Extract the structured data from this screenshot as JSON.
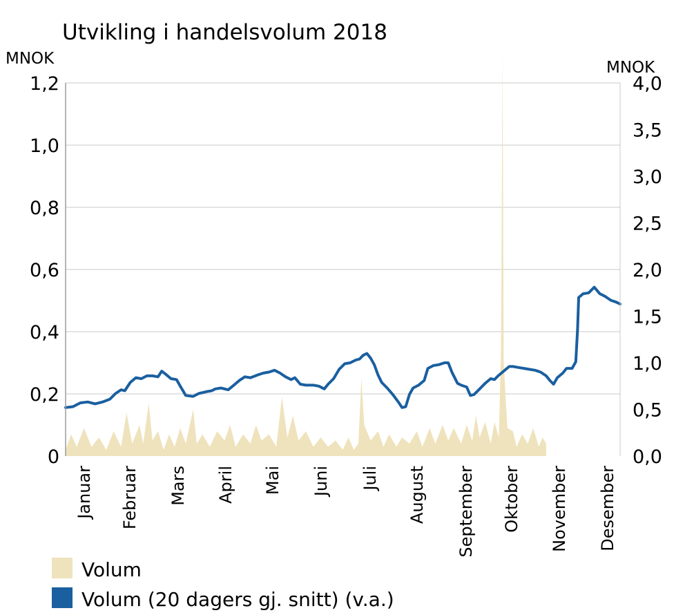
{
  "chart_data": {
    "type": "area+line",
    "title": "Utvikling i handelsvolum 2018",
    "y_left": {
      "unit": "MNOK",
      "range": [
        0,
        1.2
      ],
      "ticks": [
        "0",
        "0,2",
        "0,4",
        "0,6",
        "0,8",
        "1,0",
        "1,2"
      ]
    },
    "y_right": {
      "unit": "MNOK",
      "range": [
        0,
        4.0
      ],
      "ticks": [
        "0,0",
        "0,5",
        "1,0",
        "1,5",
        "2,0",
        "2,5",
        "3,0",
        "3,5",
        "4,0"
      ]
    },
    "grid": true,
    "months": [
      "Januar",
      "Februar",
      "Mars",
      "April",
      "Mai",
      "Juni",
      "Juli",
      "August",
      "September",
      "Oktober",
      "November",
      "Desember"
    ],
    "series": [
      {
        "name": "Volum",
        "kind": "area",
        "axis": "left",
        "color": "#efe3bd",
        "points": [
          [
            0.0,
            0.02
          ],
          [
            0.15,
            0.07
          ],
          [
            0.3,
            0.03
          ],
          [
            0.5,
            0.09
          ],
          [
            0.7,
            0.03
          ],
          [
            0.9,
            0.06
          ],
          [
            1.1,
            0.02
          ],
          [
            1.3,
            0.08
          ],
          [
            1.5,
            0.03
          ],
          [
            1.65,
            0.14
          ],
          [
            1.8,
            0.04
          ],
          [
            2.0,
            0.1
          ],
          [
            2.1,
            0.04
          ],
          [
            2.25,
            0.17
          ],
          [
            2.35,
            0.05
          ],
          [
            2.5,
            0.08
          ],
          [
            2.65,
            0.02
          ],
          [
            2.8,
            0.07
          ],
          [
            2.95,
            0.03
          ],
          [
            3.1,
            0.09
          ],
          [
            3.25,
            0.04
          ],
          [
            3.45,
            0.15
          ],
          [
            3.55,
            0.04
          ],
          [
            3.7,
            0.07
          ],
          [
            3.9,
            0.03
          ],
          [
            4.1,
            0.08
          ],
          [
            4.3,
            0.05
          ],
          [
            4.45,
            0.1
          ],
          [
            4.6,
            0.03
          ],
          [
            4.8,
            0.07
          ],
          [
            5.0,
            0.04
          ],
          [
            5.15,
            0.1
          ],
          [
            5.3,
            0.05
          ],
          [
            5.5,
            0.07
          ],
          [
            5.7,
            0.03
          ],
          [
            5.85,
            0.19
          ],
          [
            6.0,
            0.06
          ],
          [
            6.15,
            0.13
          ],
          [
            6.3,
            0.05
          ],
          [
            6.5,
            0.08
          ],
          [
            6.7,
            0.03
          ],
          [
            6.9,
            0.06
          ],
          [
            7.1,
            0.03
          ],
          [
            7.3,
            0.05
          ],
          [
            7.5,
            0.02
          ],
          [
            7.65,
            0.06
          ],
          [
            7.8,
            0.02
          ],
          [
            7.92,
            0.04
          ],
          [
            8.0,
            0.25
          ],
          [
            8.08,
            0.1
          ],
          [
            8.25,
            0.05
          ],
          [
            8.45,
            0.08
          ],
          [
            8.6,
            0.03
          ],
          [
            8.75,
            0.07
          ],
          [
            8.95,
            0.03
          ],
          [
            9.1,
            0.06
          ],
          [
            9.3,
            0.04
          ],
          [
            9.5,
            0.08
          ],
          [
            9.65,
            0.03
          ],
          [
            9.85,
            0.09
          ],
          [
            10.0,
            0.04
          ],
          [
            10.2,
            0.1
          ],
          [
            10.35,
            0.05
          ],
          [
            10.5,
            0.09
          ],
          [
            10.7,
            0.04
          ],
          [
            10.85,
            0.1
          ],
          [
            11.0,
            0.05
          ],
          [
            11.1,
            0.13
          ],
          [
            11.2,
            0.06
          ],
          [
            11.35,
            0.11
          ],
          [
            11.5,
            0.04
          ],
          [
            11.6,
            0.11
          ],
          [
            11.72,
            0.06
          ],
          [
            11.78,
            0.35
          ],
          [
            11.82,
            1.3
          ],
          [
            11.85,
            0.3
          ],
          [
            11.95,
            0.09
          ],
          [
            12.1,
            0.08
          ],
          [
            12.2,
            0.03
          ],
          [
            12.35,
            0.07
          ],
          [
            12.5,
            0.04
          ],
          [
            12.65,
            0.09
          ],
          [
            12.8,
            0.03
          ],
          [
            12.9,
            0.06
          ],
          [
            13.0,
            0.04
          ]
        ]
      },
      {
        "name": "Volum (20 dagers gj. snitt) (v.a.)",
        "kind": "line",
        "axis": "right",
        "color": "#1a5fa0",
        "points": [
          [
            0.0,
            0.52
          ],
          [
            0.2,
            0.53
          ],
          [
            0.4,
            0.57
          ],
          [
            0.6,
            0.58
          ],
          [
            0.8,
            0.56
          ],
          [
            1.0,
            0.58
          ],
          [
            1.2,
            0.61
          ],
          [
            1.35,
            0.67
          ],
          [
            1.5,
            0.71
          ],
          [
            1.6,
            0.7
          ],
          [
            1.75,
            0.79
          ],
          [
            1.9,
            0.84
          ],
          [
            2.05,
            0.83
          ],
          [
            2.2,
            0.86
          ],
          [
            2.35,
            0.86
          ],
          [
            2.5,
            0.85
          ],
          [
            2.6,
            0.91
          ],
          [
            2.7,
            0.88
          ],
          [
            2.85,
            0.83
          ],
          [
            3.0,
            0.82
          ],
          [
            3.1,
            0.75
          ],
          [
            3.25,
            0.65
          ],
          [
            3.45,
            0.64
          ],
          [
            3.6,
            0.67
          ],
          [
            3.8,
            0.69
          ],
          [
            3.95,
            0.7
          ],
          [
            4.05,
            0.72
          ],
          [
            4.2,
            0.73
          ],
          [
            4.4,
            0.71
          ],
          [
            4.55,
            0.76
          ],
          [
            4.7,
            0.81
          ],
          [
            4.85,
            0.85
          ],
          [
            5.0,
            0.84
          ],
          [
            5.2,
            0.87
          ],
          [
            5.35,
            0.89
          ],
          [
            5.5,
            0.9
          ],
          [
            5.65,
            0.92
          ],
          [
            5.8,
            0.89
          ],
          [
            5.95,
            0.85
          ],
          [
            6.1,
            0.82
          ],
          [
            6.2,
            0.84
          ],
          [
            6.35,
            0.77
          ],
          [
            6.5,
            0.76
          ],
          [
            6.7,
            0.76
          ],
          [
            6.85,
            0.75
          ],
          [
            7.0,
            0.72
          ],
          [
            7.1,
            0.77
          ],
          [
            7.25,
            0.83
          ],
          [
            7.4,
            0.93
          ],
          [
            7.55,
            0.99
          ],
          [
            7.7,
            1.0
          ],
          [
            7.85,
            1.03
          ],
          [
            7.95,
            1.04
          ],
          [
            8.05,
            1.08
          ],
          [
            8.15,
            1.1
          ],
          [
            8.25,
            1.05
          ],
          [
            8.35,
            0.98
          ],
          [
            8.45,
            0.87
          ],
          [
            8.55,
            0.79
          ],
          [
            8.7,
            0.73
          ],
          [
            8.85,
            0.66
          ],
          [
            9.0,
            0.58
          ],
          [
            9.1,
            0.52
          ],
          [
            9.2,
            0.53
          ],
          [
            9.3,
            0.66
          ],
          [
            9.4,
            0.73
          ],
          [
            9.55,
            0.76
          ],
          [
            9.7,
            0.81
          ],
          [
            9.8,
            0.94
          ],
          [
            9.95,
            0.97
          ],
          [
            10.1,
            0.98
          ],
          [
            10.25,
            1.0
          ],
          [
            10.35,
            1.0
          ],
          [
            10.45,
            0.9
          ],
          [
            10.6,
            0.78
          ],
          [
            10.7,
            0.76
          ],
          [
            10.85,
            0.74
          ],
          [
            10.95,
            0.65
          ],
          [
            11.05,
            0.66
          ],
          [
            11.2,
            0.72
          ],
          [
            11.35,
            0.78
          ],
          [
            11.5,
            0.83
          ],
          [
            11.6,
            0.82
          ],
          [
            11.7,
            0.86
          ],
          [
            11.85,
            0.91
          ],
          [
            12.0,
            0.96
          ],
          [
            12.1,
            0.96
          ],
          [
            12.25,
            0.95
          ],
          [
            12.4,
            0.94
          ],
          [
            12.55,
            0.93
          ],
          [
            12.7,
            0.92
          ],
          [
            12.85,
            0.9
          ],
          [
            13.0,
            0.86
          ],
          [
            13.1,
            0.81
          ],
          [
            13.2,
            0.77
          ],
          [
            13.3,
            0.84
          ],
          [
            13.45,
            0.89
          ],
          [
            13.55,
            0.94
          ],
          [
            13.7,
            0.94
          ],
          [
            13.8,
            1.01
          ],
          [
            13.85,
            1.36
          ],
          [
            13.88,
            1.7
          ],
          [
            14.0,
            1.74
          ],
          [
            14.15,
            1.75
          ],
          [
            14.3,
            1.81
          ],
          [
            14.45,
            1.74
          ],
          [
            14.6,
            1.71
          ],
          [
            14.75,
            1.67
          ],
          [
            14.9,
            1.65
          ],
          [
            15.0,
            1.63
          ]
        ]
      }
    ],
    "legend": [
      {
        "label": "Volum",
        "color": "#efe3bd"
      },
      {
        "label": "Volum (20 dagers gj. snitt) (v.a.)",
        "color": "#1a5fa0"
      }
    ]
  }
}
